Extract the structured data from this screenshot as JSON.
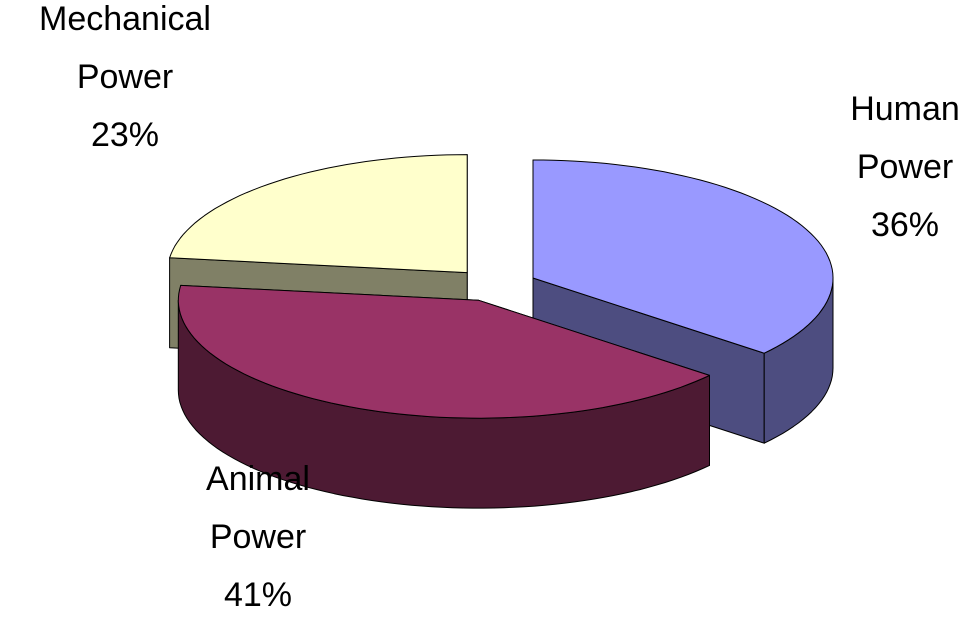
{
  "chart_data": {
    "type": "pie3d",
    "categories": [
      "Human Power",
      "Animal Power",
      "Mechanical Power"
    ],
    "values": [
      36,
      41,
      23
    ],
    "value_labels": [
      "36%",
      "41%",
      "23%"
    ],
    "colors": [
      "#9999ff",
      "#993366",
      "#ffffcc"
    ],
    "side_colors": [
      "#4d4d80",
      "#4d1a33",
      "#808066"
    ]
  }
}
